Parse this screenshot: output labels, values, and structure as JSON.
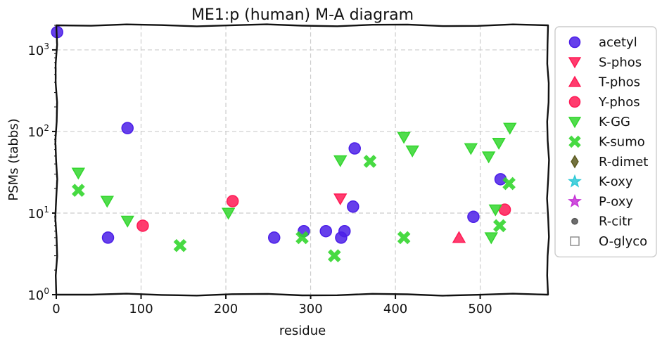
{
  "chart_data": {
    "type": "scatter",
    "title": "ME1:p (human) M-A diagram",
    "xlabel": "residue",
    "ylabel": "PSMs (tabbs)",
    "xlim": [
      0,
      580
    ],
    "ylim": [
      1,
      2000
    ],
    "yscale": "log",
    "grid": true,
    "legend_position": "right-outside-top",
    "x_ticks": [
      {
        "value": 0,
        "label": "0"
      },
      {
        "value": 100,
        "label": "100"
      },
      {
        "value": 200,
        "label": "200"
      },
      {
        "value": 300,
        "label": "300"
      },
      {
        "value": 400,
        "label": "400"
      },
      {
        "value": 500,
        "label": "500"
      }
    ],
    "y_ticks": [
      {
        "value": 1,
        "base": "10",
        "exp": "0"
      },
      {
        "value": 10,
        "base": "10",
        "exp": "1"
      },
      {
        "value": 100,
        "base": "10",
        "exp": "2"
      },
      {
        "value": 1000,
        "base": "10",
        "exp": "3"
      }
    ],
    "series": [
      {
        "name": "acetyl",
        "marker": "circle",
        "color": "#4b1ee8",
        "points": [
          {
            "x": 1,
            "y": 1650
          },
          {
            "x": 61,
            "y": 5
          },
          {
            "x": 84,
            "y": 110
          },
          {
            "x": 257,
            "y": 5
          },
          {
            "x": 292,
            "y": 6
          },
          {
            "x": 318,
            "y": 6
          },
          {
            "x": 336,
            "y": 5
          },
          {
            "x": 340,
            "y": 6
          },
          {
            "x": 350,
            "y": 12
          },
          {
            "x": 352,
            "y": 62
          },
          {
            "x": 492,
            "y": 9
          },
          {
            "x": 524,
            "y": 26
          }
        ]
      },
      {
        "name": "S-phos",
        "marker": "triangle-down",
        "color": "#ff1a55",
        "points": [
          {
            "x": 335,
            "y": 15
          }
        ]
      },
      {
        "name": "T-phos",
        "marker": "triangle-up",
        "color": "#ff1a55",
        "points": [
          {
            "x": 475,
            "y": 5
          }
        ]
      },
      {
        "name": "Y-phos",
        "marker": "circle",
        "color": "#ff1a55",
        "points": [
          {
            "x": 102,
            "y": 7
          },
          {
            "x": 208,
            "y": 14
          },
          {
            "x": 529,
            "y": 11
          }
        ]
      },
      {
        "name": "K-GG",
        "marker": "triangle-down",
        "color": "#33d62e",
        "points": [
          {
            "x": 26,
            "y": 31
          },
          {
            "x": 60,
            "y": 14
          },
          {
            "x": 84,
            "y": 8
          },
          {
            "x": 203,
            "y": 10
          },
          {
            "x": 335,
            "y": 44
          },
          {
            "x": 410,
            "y": 85
          },
          {
            "x": 420,
            "y": 58
          },
          {
            "x": 489,
            "y": 62
          },
          {
            "x": 510,
            "y": 49
          },
          {
            "x": 513,
            "y": 5
          },
          {
            "x": 518,
            "y": 11
          },
          {
            "x": 522,
            "y": 72
          },
          {
            "x": 535,
            "y": 110
          }
        ]
      },
      {
        "name": "K-sumo",
        "marker": "x-cross",
        "color": "#33d62e",
        "points": [
          {
            "x": 26,
            "y": 19
          },
          {
            "x": 146,
            "y": 4
          },
          {
            "x": 290,
            "y": 5
          },
          {
            "x": 328,
            "y": 3
          },
          {
            "x": 370,
            "y": 43
          },
          {
            "x": 410,
            "y": 5
          },
          {
            "x": 523,
            "y": 7
          },
          {
            "x": 534,
            "y": 23
          }
        ]
      },
      {
        "name": "R-dimet",
        "marker": "diamond",
        "color": "#5c5a1e",
        "points": []
      },
      {
        "name": "K-oxy",
        "marker": "star",
        "color": "#2ec9d6",
        "points": []
      },
      {
        "name": "P-oxy",
        "marker": "star",
        "color": "#c532d6",
        "points": []
      },
      {
        "name": "R-citr",
        "marker": "small-circle",
        "color": "#555555",
        "points": []
      },
      {
        "name": "O-glyco",
        "marker": "square-open",
        "color": "#888888",
        "points": []
      }
    ]
  }
}
